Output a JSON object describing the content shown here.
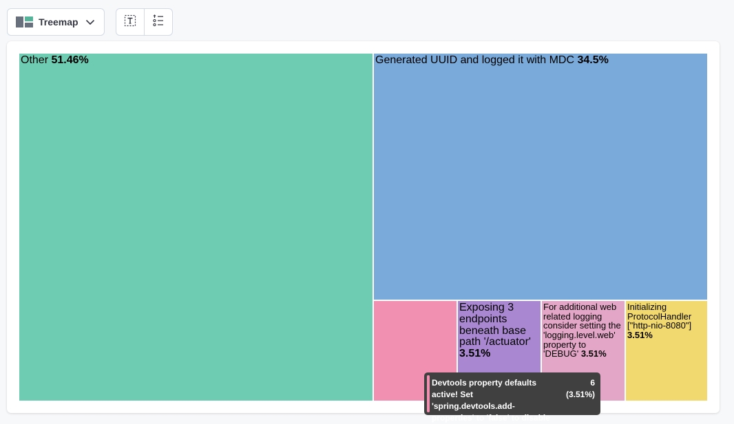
{
  "toolbar": {
    "chart_type_label": "Treemap",
    "chart_type_icon": "treemap-icon",
    "chart_type_chevron": "chevron-down-icon",
    "text_toggle_icon": "text-icon",
    "legend_toggle_icon": "list-icon"
  },
  "chart_data": {
    "type": "treemap",
    "title": "",
    "items": [
      {
        "label": "Other",
        "pct_label": "51.46%",
        "value": 51.46,
        "color": "#6dccb1"
      },
      {
        "label": "Generated UUID and logged it with MDC",
        "pct_label": "34.5%",
        "value": 34.5,
        "color": "#79aad9"
      },
      {
        "label": "",
        "pct_label": "",
        "value": 3.51,
        "color": "#f190b0"
      },
      {
        "label": "Exposing 3 endpoints beneath base path '/actuator'",
        "pct_label": "3.51%",
        "value": 3.51,
        "color": "#a987d1"
      },
      {
        "label": "For additional web related logging consider setting the 'logging.level.web' property to 'DEBUG'",
        "pct_label": "3.51%",
        "value": 3.51,
        "color": "#e4a6c7"
      },
      {
        "label": "Initializing ProtocolHandler [\"http-nio-8080\"]",
        "pct_label": "3.51%",
        "value": 3.51,
        "color": "#f1d86f"
      }
    ]
  },
  "tooltip": {
    "label": "Devtools property defaults active! Set 'spring.devtools.add-properties' to 'false' to disable",
    "count": "6",
    "pct": "(3.51%)",
    "color": "#f190b0"
  }
}
